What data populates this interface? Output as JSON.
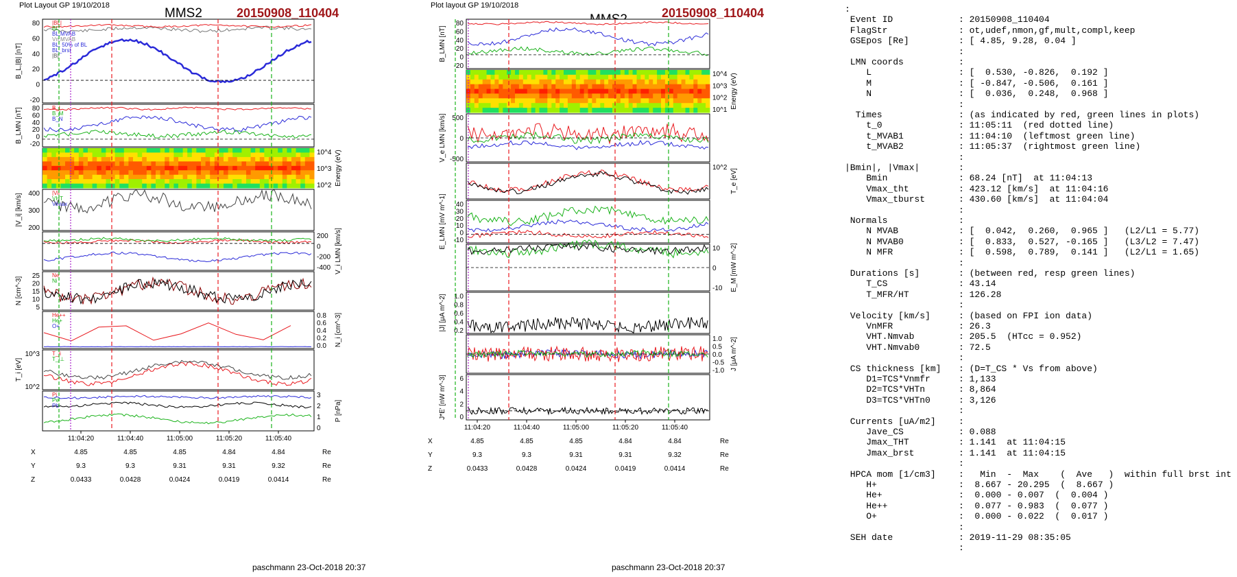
{
  "left_figure": {
    "header_small": "Plot Layout GP 19/10/2018",
    "spacecraft": "MMS2",
    "event": "20150908_110404",
    "footer": "paschmann 23-Oct-2018 20:37",
    "time_ticks": [
      "11:04:20",
      "11:04:40",
      "11:05:00",
      "11:05:20",
      "11:05:40"
    ],
    "position_rows": [
      {
        "label": "X",
        "values": [
          "4.85",
          "4.85",
          "4.85",
          "4.84",
          "4.84"
        ],
        "unit": "Re"
      },
      {
        "label": "Y",
        "values": [
          "9.3",
          "9.3",
          "9.31",
          "9.31",
          "9.32"
        ],
        "unit": "Re"
      },
      {
        "label": "Z",
        "values": [
          "0.0433",
          "0.0428",
          "0.0424",
          "0.0419",
          "0.0414"
        ],
        "unit": "Re"
      }
    ],
    "panels": [
      {
        "ylabel": "B_L,|B| [nT]",
        "ticks_left": [
          "80",
          "60",
          "40",
          "20",
          "0",
          "-20"
        ],
        "legend": [
          "|BL|",
          "BL",
          "BL,MVAB",
          "Vn,MVAB",
          "BL, 50% of BL",
          "BL_brst",
          "|B|"
        ]
      },
      {
        "ylabel": "B_LMN [nT]",
        "ticks_left": [
          "80",
          "60",
          "40",
          "20",
          "0",
          "-20"
        ],
        "legend": [
          "B_L",
          "B_M",
          "B_N"
        ]
      },
      {
        "ylabel": "Energy (eV)",
        "ticks_right": [
          "10^4",
          "10^3",
          "10^2"
        ]
      },
      {
        "ylabel": "|V_i| [km/s]",
        "ticks_left": [
          "400",
          "300",
          "200"
        ],
        "legend": [
          "|Vi|",
          "VHT",
          "Vimax"
        ]
      },
      {
        "ylabel": "V_i LMN [km/s]",
        "ticks_right": [
          "200",
          "0",
          "-200",
          "-400"
        ]
      },
      {
        "ylabel": "N [cm^-3]",
        "ticks_left": [
          "25",
          "20",
          "15",
          "10",
          "5"
        ],
        "legend": [
          "Ne",
          "Ni"
        ]
      },
      {
        "ylabel": "N_i [cm^-3]",
        "ticks_right": [
          "0.8",
          "0.6",
          "0.4",
          "0.2",
          "0.0"
        ],
        "legend": [
          "He++",
          "He+",
          "O+"
        ]
      },
      {
        "ylabel": "T_i [eV]",
        "ticks_left": [
          "10^3",
          "10^2"
        ],
        "legend": [
          "T_ii",
          "T_i⊥"
        ]
      },
      {
        "ylabel": "P [nPa]",
        "ticks_right": [
          "3",
          "2",
          "1",
          "0"
        ],
        "legend": [
          "Pi",
          "Pe",
          "Pb"
        ]
      }
    ]
  },
  "mid_figure": {
    "header_small": "Plot layout GP 19/10/2018",
    "spacecraft": "MMS2",
    "event": "20150908_110404",
    "footer": "paschmann 23-Oct-2018 20:37",
    "time_ticks": [
      "11:04:20",
      "11:04:40",
      "11:05:00",
      "11:05:20",
      "11:05:40"
    ],
    "position_rows": [
      {
        "label": "X",
        "values": [
          "4.85",
          "4.85",
          "4.85",
          "4.84",
          "4.84"
        ],
        "unit": "Re"
      },
      {
        "label": "Y",
        "values": [
          "9.3",
          "9.3",
          "9.31",
          "9.31",
          "9.32"
        ],
        "unit": "Re"
      },
      {
        "label": "Z",
        "values": [
          "0.0433",
          "0.0428",
          "0.0424",
          "0.0419",
          "0.0414"
        ],
        "unit": "Re"
      }
    ],
    "panels": [
      {
        "ylabel": "B_LMN [nT]",
        "ticks_left": [
          "80",
          "60",
          "40",
          "20",
          "0",
          "-20"
        ]
      },
      {
        "ylabel": "Energy (eV)",
        "ticks_right": [
          "10^4",
          "10^3",
          "10^2",
          "10^1"
        ]
      },
      {
        "ylabel": "V_e LMN [km/s]",
        "ticks_left": [
          "500",
          "0",
          "-500"
        ]
      },
      {
        "ylabel": "T_e [eV]",
        "ticks_right": [
          "10^2"
        ]
      },
      {
        "ylabel": "E_LMN [mV m^-1]",
        "ticks_left": [
          "40",
          "30",
          "20",
          "10",
          "0",
          "-10"
        ]
      },
      {
        "ylabel": "E_M [mW m^-2]",
        "ticks_right": [
          "10",
          "0",
          "-10"
        ]
      },
      {
        "ylabel": "|J| [μA m^-2]",
        "ticks_left": [
          "1.0",
          "0.8",
          "0.6",
          "0.4",
          "0.2"
        ]
      },
      {
        "ylabel": "J [μA m^-2]",
        "ticks_right": [
          "1.0",
          "0.5",
          "0.0",
          "-0.5",
          "-1.0"
        ]
      },
      {
        "ylabel": "J*E' [nW m^-3]",
        "ticks_left": [
          "6",
          "4",
          "2",
          "0"
        ]
      }
    ]
  },
  "right_text": [
    {
      "key": ":",
      "val": ""
    },
    {
      "key": " Event ID",
      "val": ": 20150908_110404"
    },
    {
      "key": " FlagStr",
      "val": ": ot,udef,nmon,gf,mult,compl,keep"
    },
    {
      "key": " GSEpos [Re]",
      "val": ": [ 4.85, 9.28, 0.04 ]"
    },
    {
      "key": "",
      "val": ":"
    },
    {
      "key": " LMN coords",
      "val": ":"
    },
    {
      "key": "    L",
      "val": ": [  0.530, -0.826,  0.192 ]"
    },
    {
      "key": "    M",
      "val": ": [ -0.847, -0.506,  0.161 ]"
    },
    {
      "key": "    N",
      "val": ": [  0.036,  0.248,  0.968 ]"
    },
    {
      "key": "",
      "val": ":"
    },
    {
      "key": "  Times",
      "val": ": (as indicated by red, green lines in plots)"
    },
    {
      "key": "    t_0",
      "val": ": 11:05:11  (red dotted line)"
    },
    {
      "key": "    t_MVAB1",
      "val": ": 11:04:10  (leftmost green line)"
    },
    {
      "key": "    t_MVAB2",
      "val": ": 11:05:37  (rightmost green line)"
    },
    {
      "key": "",
      "val": ":"
    },
    {
      "key": "|Bmin|, |Vmax|",
      "val": ":"
    },
    {
      "key": "    Bmin",
      "val": ": 68.24 [nT]  at 11:04:13"
    },
    {
      "key": "    Vmax_tht",
      "val": ": 423.12 [km/s]  at 11:04:16"
    },
    {
      "key": "    Vmax_tburst",
      "val": ": 430.60 [km/s]  at 11:04:04"
    },
    {
      "key": "",
      "val": ":"
    },
    {
      "key": " Normals",
      "val": ":"
    },
    {
      "key": "    N MVAB",
      "val": ": [  0.042,  0.260,  0.965 ]   (L2/L1 = 5.77)"
    },
    {
      "key": "    N MVAB0",
      "val": ": [  0.833,  0.527, -0.165 ]   (L3/L2 = 7.47)"
    },
    {
      "key": "    N MFR",
      "val": ": [  0.598,  0.789,  0.141 ]   (L2/L1 = 1.65)"
    },
    {
      "key": "",
      "val": ":"
    },
    {
      "key": " Durations [s]",
      "val": ": (between red, resp green lines)"
    },
    {
      "key": "    T_CS",
      "val": ": 43.14"
    },
    {
      "key": "    T_MFR/HT",
      "val": ": 126.28"
    },
    {
      "key": "",
      "val": ":"
    },
    {
      "key": " Velocity [km/s]",
      "val": ": (based on FPI ion data)"
    },
    {
      "key": "    VnMFR",
      "val": ": 26.3"
    },
    {
      "key": "    VHT.Nmvab",
      "val": ": 205.5  (HTcc = 0.952)"
    },
    {
      "key": "    VHT.Nmvab0",
      "val": ": 72.5"
    },
    {
      "key": "",
      "val": ":"
    },
    {
      "key": " CS thickness [km]",
      "val": ": (D=T_CS * Vs from above)"
    },
    {
      "key": "    D1=TCS*Vnmfr",
      "val": ": 1,133"
    },
    {
      "key": "    D2=TCS*VHTn",
      "val": ": 8,864"
    },
    {
      "key": "    D3=TCS*VHTn0",
      "val": ": 3,126"
    },
    {
      "key": "",
      "val": ":"
    },
    {
      "key": " Currents [uA/m2]",
      "val": ":"
    },
    {
      "key": "    Jave_CS",
      "val": ": 0.088"
    },
    {
      "key": "    Jmax_THT",
      "val": ": 1.141  at 11:04:15"
    },
    {
      "key": "    Jmax_brst",
      "val": ": 1.141  at 11:04:15"
    },
    {
      "key": "",
      "val": ":"
    },
    {
      "key": " HPCA mom [1/cm3]",
      "val": ":   Min  -  Max    (  Ave   )  within full brst int"
    },
    {
      "key": "    H+",
      "val": ":  8.667 - 20.295  (  8.667 )"
    },
    {
      "key": "    He+",
      "val": ":  0.000 - 0.007  (  0.004 )"
    },
    {
      "key": "    He++",
      "val": ":  0.077 - 0.983  (  0.077 )"
    },
    {
      "key": "    O+",
      "val": ":  0.000 - 0.022  (  0.017 )"
    },
    {
      "key": "",
      "val": ":"
    },
    {
      "key": " SEH date",
      "val": ": 2019-11-29 08:35:05"
    },
    {
      "key": "",
      "val": ":"
    }
  ],
  "colors": {
    "event_red": "#a0171a",
    "red": "#e8191e",
    "green": "#19b219",
    "blue": "#2a2ad8",
    "black": "#000000",
    "gray": "#888888",
    "magenta": "#cc22cc"
  }
}
